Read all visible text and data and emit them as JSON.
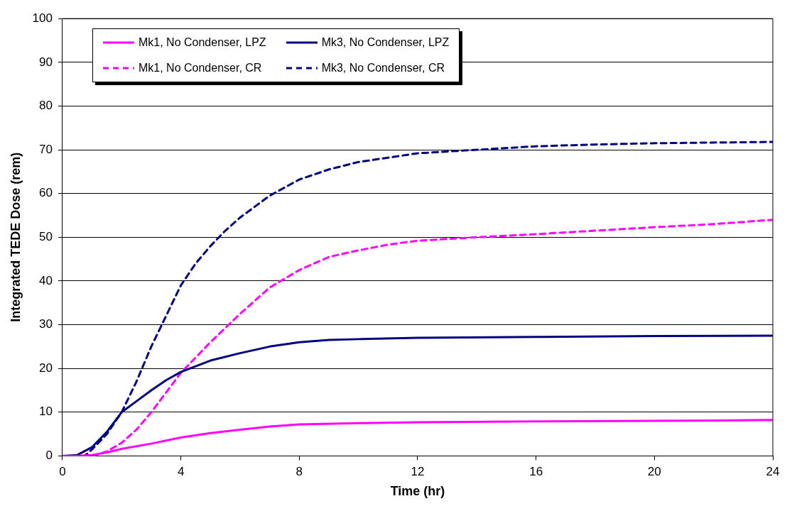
{
  "chart_data": {
    "type": "line",
    "xlabel": "Time (hr)",
    "ylabel": "Integrated TEDE Dose (rem)",
    "xlim": [
      0,
      24
    ],
    "xticks": [
      0,
      4,
      8,
      12,
      16,
      20,
      24
    ],
    "ylim": [
      0,
      100
    ],
    "yticks": [
      0,
      10,
      20,
      30,
      40,
      50,
      60,
      70,
      80,
      90,
      100
    ],
    "grid": "y",
    "legend": "top left",
    "marker": "none",
    "series": [
      {
        "name": "Mk1, No Condenser, LPZ",
        "color": "#ff00ff",
        "line_style": "solid",
        "x": [
          0,
          0.5,
          1,
          1.5,
          2,
          3,
          4,
          5,
          6,
          7,
          8,
          10,
          12,
          16,
          20,
          24
        ],
        "values": [
          0,
          0,
          0.2,
          0.8,
          1.6,
          2.8,
          4.2,
          5.2,
          6.0,
          6.7,
          7.2,
          7.5,
          7.7,
          7.9,
          8.0,
          8.2
        ]
      },
      {
        "name": "Mk3, No Condenser, LPZ",
        "color": "#000080",
        "line_style": "solid",
        "x": [
          0,
          0.5,
          1,
          1.5,
          2,
          2.5,
          3,
          3.5,
          4,
          4.5,
          5,
          6,
          7,
          8,
          9,
          10,
          12,
          16,
          20,
          24
        ],
        "values": [
          0,
          0.2,
          2,
          5.5,
          10,
          12.5,
          15,
          17.3,
          19.2,
          20.5,
          21.8,
          23.5,
          25,
          26,
          26.5,
          26.7,
          27,
          27.2,
          27.4,
          27.5
        ]
      },
      {
        "name": "Mk1, No Condenser, CR",
        "color": "#ff00ff",
        "line_style": "dashed",
        "x": [
          0,
          1,
          1.5,
          2,
          2.5,
          3,
          3.5,
          4,
          5,
          6,
          7,
          8,
          9,
          10,
          11,
          12,
          14,
          16,
          18,
          20,
          22,
          24
        ],
        "values": [
          0,
          0,
          1,
          3,
          6,
          10,
          14.5,
          19,
          26,
          32.5,
          38.5,
          42.5,
          45.5,
          47,
          48.3,
          49.2,
          50,
          50.7,
          51.5,
          52.3,
          53,
          54
        ]
      },
      {
        "name": "Mk3, No Condenser, CR",
        "color": "#000080",
        "line_style": "dashed",
        "x": [
          0,
          0.75,
          1,
          1.5,
          2,
          2.5,
          3,
          3.5,
          4,
          4.5,
          5,
          5.5,
          6,
          7,
          8,
          9,
          10,
          11,
          12,
          14,
          16,
          18,
          20,
          24
        ],
        "values": [
          0,
          0,
          1.5,
          5,
          10,
          17,
          25,
          32,
          39,
          44,
          48,
          51.5,
          54.5,
          59.5,
          63.2,
          65.5,
          67.2,
          68.2,
          69.2,
          70,
          70.8,
          71.2,
          71.5,
          71.8
        ]
      }
    ]
  }
}
